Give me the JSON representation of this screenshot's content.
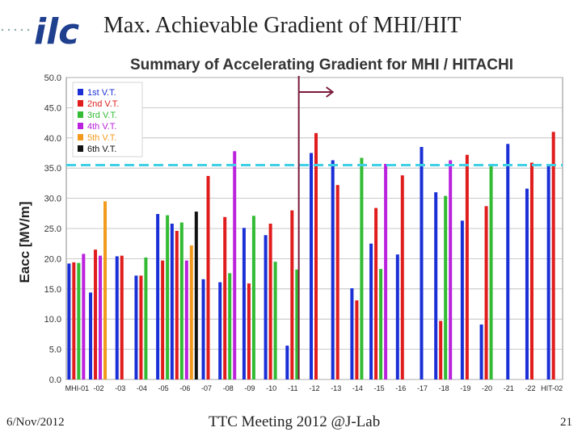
{
  "slide": {
    "title": "Max. Achievable Gradient of MHI/HIT",
    "footer_date": "6/Nov/2012",
    "footer_center": "TTC Meeting 2012 @J-Lab",
    "page_number": "21",
    "logo_text": "ilc"
  },
  "chart_data": {
    "type": "bar",
    "title": "Summary of Accelerating Gradient for MHI / HITACHI",
    "ylabel": "Eacc [MV/m]",
    "xlabel": "",
    "ylim": [
      0,
      50
    ],
    "yticks": [
      "0.0",
      "5.0",
      "10.0",
      "15.0",
      "20.0",
      "25.0",
      "30.0",
      "35.0",
      "40.0",
      "45.0",
      "50.0"
    ],
    "categories": [
      "MHI-01",
      "-02",
      "-03",
      "-04",
      "-05",
      "-06",
      "-07",
      "-08",
      "-09",
      "-10",
      "-11",
      "-12",
      "-13",
      "-14",
      "-15",
      "-16",
      "-17",
      "-18",
      "-19",
      "-20",
      "-21",
      "-22",
      "HIT-02"
    ],
    "reference_line": 35.5,
    "divider_after_index": 10,
    "legend_position": "top-left",
    "series": [
      {
        "name": "1st V.T.",
        "color": "#1a2fd6",
        "values": [
          19.2,
          14.4,
          20.4,
          17.2,
          27.4,
          25.8,
          16.6,
          16.1,
          25.1,
          23.9,
          5.6,
          37.5,
          36.3,
          15.1,
          22.5,
          20.7,
          38.5,
          31.0,
          26.3,
          9.1,
          39.0,
          31.6,
          35.4
        ]
      },
      {
        "name": "2nd V.T.",
        "color": "#e01c1c",
        "values": [
          19.4,
          21.5,
          20.5,
          17.2,
          19.7,
          24.6,
          33.7,
          26.9,
          15.9,
          25.8,
          28.0,
          40.8,
          32.2,
          13.1,
          28.4,
          33.8,
          null,
          9.7,
          37.2,
          28.7,
          null,
          35.9,
          41.0
        ]
      },
      {
        "name": "3rd V.T.",
        "color": "#33bb33",
        "values": [
          19.3,
          null,
          null,
          20.2,
          27.2,
          26.0,
          null,
          17.6,
          27.1,
          19.5,
          18.2,
          null,
          null,
          36.7,
          18.3,
          null,
          null,
          30.4,
          null,
          35.4,
          null,
          null,
          null
        ]
      },
      {
        "name": "4th V.T.",
        "color": "#bb22dd",
        "values": [
          20.8,
          20.5,
          null,
          null,
          null,
          19.7,
          null,
          37.8,
          null,
          null,
          null,
          null,
          null,
          null,
          35.7,
          null,
          null,
          36.3,
          null,
          null,
          null,
          null,
          null
        ]
      },
      {
        "name": "5th V.T.",
        "color": "#f29a1e",
        "values": [
          null,
          29.5,
          null,
          null,
          null,
          22.2,
          null,
          null,
          null,
          null,
          null,
          null,
          null,
          null,
          null,
          null,
          null,
          null,
          null,
          null,
          null,
          null,
          null
        ]
      },
      {
        "name": "6th V.T.",
        "color": "#111111",
        "values": [
          null,
          null,
          null,
          null,
          null,
          27.8,
          null,
          null,
          null,
          null,
          null,
          null,
          null,
          null,
          null,
          null,
          null,
          null,
          null,
          null,
          null,
          null,
          null
        ]
      }
    ]
  }
}
